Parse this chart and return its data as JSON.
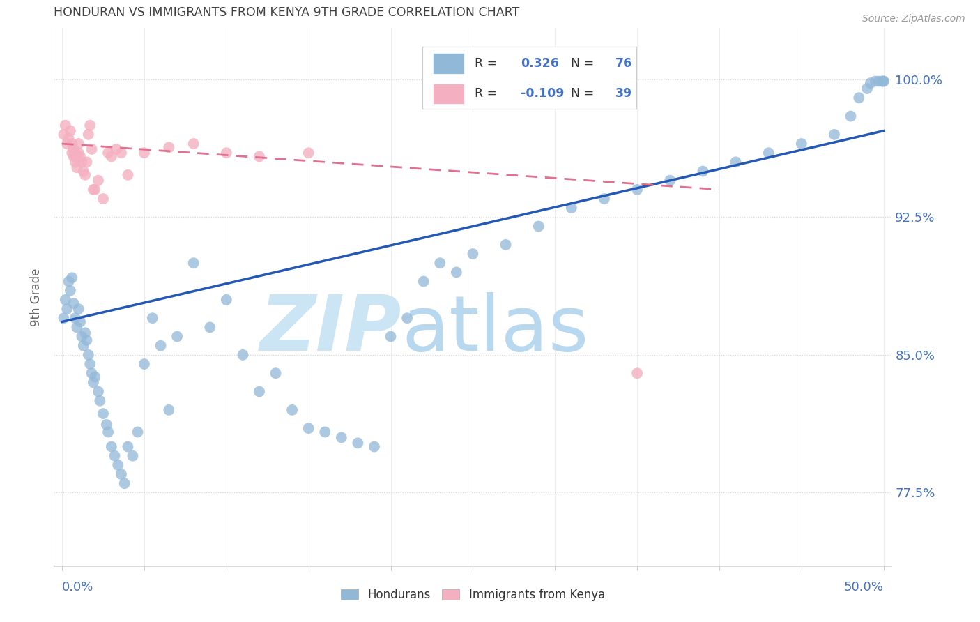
{
  "title": "HONDURAN VS IMMIGRANTS FROM KENYA 9TH GRADE CORRELATION CHART",
  "source": "Source: ZipAtlas.com",
  "ylabel": "9th Grade",
  "ymin": 0.735,
  "ymax": 1.028,
  "xmin": -0.005,
  "xmax": 0.505,
  "r_blue": 0.326,
  "n_blue": 76,
  "r_pink": -0.109,
  "n_pink": 39,
  "blue_color": "#92b8d8",
  "pink_color": "#f4afc0",
  "trend_blue_color": "#2458b5",
  "trend_pink_color": "#e07090",
  "watermark_zip_color": "#cce0f0",
  "watermark_atlas_color": "#b8d4ec",
  "title_color": "#404040",
  "axis_label_color": "#4472c4",
  "grid_color": "#d8d8d8",
  "ytick_positions": [
    0.775,
    0.85,
    0.925,
    1.0
  ],
  "ytick_labels": [
    "77.5%",
    "85.0%",
    "92.5%",
    "100.0%"
  ],
  "blue_x": [
    0.001,
    0.002,
    0.003,
    0.004,
    0.005,
    0.006,
    0.007,
    0.008,
    0.009,
    0.01,
    0.011,
    0.012,
    0.013,
    0.014,
    0.015,
    0.016,
    0.017,
    0.018,
    0.019,
    0.02,
    0.022,
    0.023,
    0.025,
    0.027,
    0.028,
    0.03,
    0.032,
    0.034,
    0.036,
    0.038,
    0.04,
    0.043,
    0.046,
    0.05,
    0.055,
    0.06,
    0.065,
    0.07,
    0.08,
    0.09,
    0.1,
    0.11,
    0.12,
    0.13,
    0.14,
    0.15,
    0.16,
    0.17,
    0.18,
    0.19,
    0.2,
    0.21,
    0.22,
    0.23,
    0.24,
    0.25,
    0.27,
    0.29,
    0.31,
    0.33,
    0.35,
    0.37,
    0.39,
    0.41,
    0.43,
    0.45,
    0.47,
    0.48,
    0.485,
    0.49,
    0.492,
    0.495,
    0.497,
    0.499,
    0.5,
    0.5
  ],
  "blue_y": [
    0.87,
    0.88,
    0.875,
    0.89,
    0.885,
    0.892,
    0.878,
    0.87,
    0.865,
    0.875,
    0.868,
    0.86,
    0.855,
    0.862,
    0.858,
    0.85,
    0.845,
    0.84,
    0.835,
    0.838,
    0.83,
    0.825,
    0.818,
    0.812,
    0.808,
    0.8,
    0.795,
    0.79,
    0.785,
    0.78,
    0.8,
    0.795,
    0.808,
    0.845,
    0.87,
    0.855,
    0.82,
    0.86,
    0.9,
    0.865,
    0.88,
    0.85,
    0.83,
    0.84,
    0.82,
    0.81,
    0.808,
    0.805,
    0.802,
    0.8,
    0.86,
    0.87,
    0.89,
    0.9,
    0.895,
    0.905,
    0.91,
    0.92,
    0.93,
    0.935,
    0.94,
    0.945,
    0.95,
    0.955,
    0.96,
    0.965,
    0.97,
    0.98,
    0.99,
    0.995,
    0.998,
    0.999,
    0.999,
    0.999,
    0.999,
    0.999
  ],
  "pink_x": [
    0.001,
    0.002,
    0.003,
    0.004,
    0.005,
    0.006,
    0.006,
    0.007,
    0.007,
    0.008,
    0.008,
    0.009,
    0.009,
    0.01,
    0.01,
    0.011,
    0.012,
    0.013,
    0.014,
    0.015,
    0.016,
    0.017,
    0.018,
    0.019,
    0.02,
    0.022,
    0.025,
    0.028,
    0.03,
    0.033,
    0.036,
    0.04,
    0.05,
    0.065,
    0.08,
    0.1,
    0.12,
    0.15,
    0.35
  ],
  "pink_y": [
    0.97,
    0.975,
    0.965,
    0.968,
    0.972,
    0.965,
    0.96,
    0.958,
    0.962,
    0.96,
    0.955,
    0.958,
    0.952,
    0.96,
    0.965,
    0.958,
    0.955,
    0.95,
    0.948,
    0.955,
    0.97,
    0.975,
    0.962,
    0.94,
    0.94,
    0.945,
    0.935,
    0.96,
    0.958,
    0.962,
    0.96,
    0.948,
    0.96,
    0.963,
    0.965,
    0.96,
    0.958,
    0.96,
    0.84
  ],
  "trend_blue_x0": 0.0,
  "trend_blue_y0": 0.868,
  "trend_blue_x1": 0.5,
  "trend_blue_y1": 0.972,
  "trend_pink_x0": 0.0,
  "trend_pink_y0": 0.965,
  "trend_pink_x1": 0.4,
  "trend_pink_y1": 0.94,
  "background_color": "#ffffff"
}
